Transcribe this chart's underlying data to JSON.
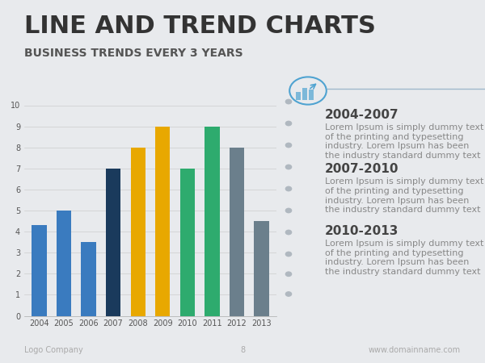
{
  "title": "LINE AND TREND CHARTS",
  "subtitle": "BUSINESS TRENDS EVERY 3 YEARS",
  "background_color": "#e8eaed",
  "chart_bg": "#e8eaed",
  "categories": [
    "2004",
    "2005",
    "2006",
    "2007",
    "2008",
    "2009",
    "2010",
    "2011",
    "2012",
    "2013"
  ],
  "values": [
    4.3,
    5.0,
    3.5,
    7.0,
    8.0,
    9.0,
    7.0,
    9.0,
    8.0,
    4.5
  ],
  "bar_colors": [
    "#3a7bbf",
    "#3a7bbf",
    "#3a7bbf",
    "#1a3a5c",
    "#e8a800",
    "#e8a800",
    "#2eab6e",
    "#2eab6e",
    "#6b7f8c",
    "#6b7f8c"
  ],
  "ylim": [
    0,
    10
  ],
  "yticks": [
    0,
    1,
    2,
    3,
    4,
    5,
    6,
    7,
    8,
    9,
    10
  ],
  "title_fontsize": 22,
  "subtitle_fontsize": 10,
  "footer_left": "Logo Company",
  "footer_center": "8",
  "footer_right": "www.domainname.com",
  "sidebar_periods": [
    "2004-2007",
    "2007-2010",
    "2010-2013"
  ],
  "sidebar_text": "Lorem Ipsum is simply dummy text of the printing and typesetting industry. Lorem Ipsum has been the industry standard dummy text",
  "sidebar_period_fontsize": 11,
  "sidebar_body_fontsize": 8,
  "dot_color": "#b0b8c0",
  "icon_circle_color": "#4fa3d1",
  "timeline_line_color": "#a0b8cc"
}
